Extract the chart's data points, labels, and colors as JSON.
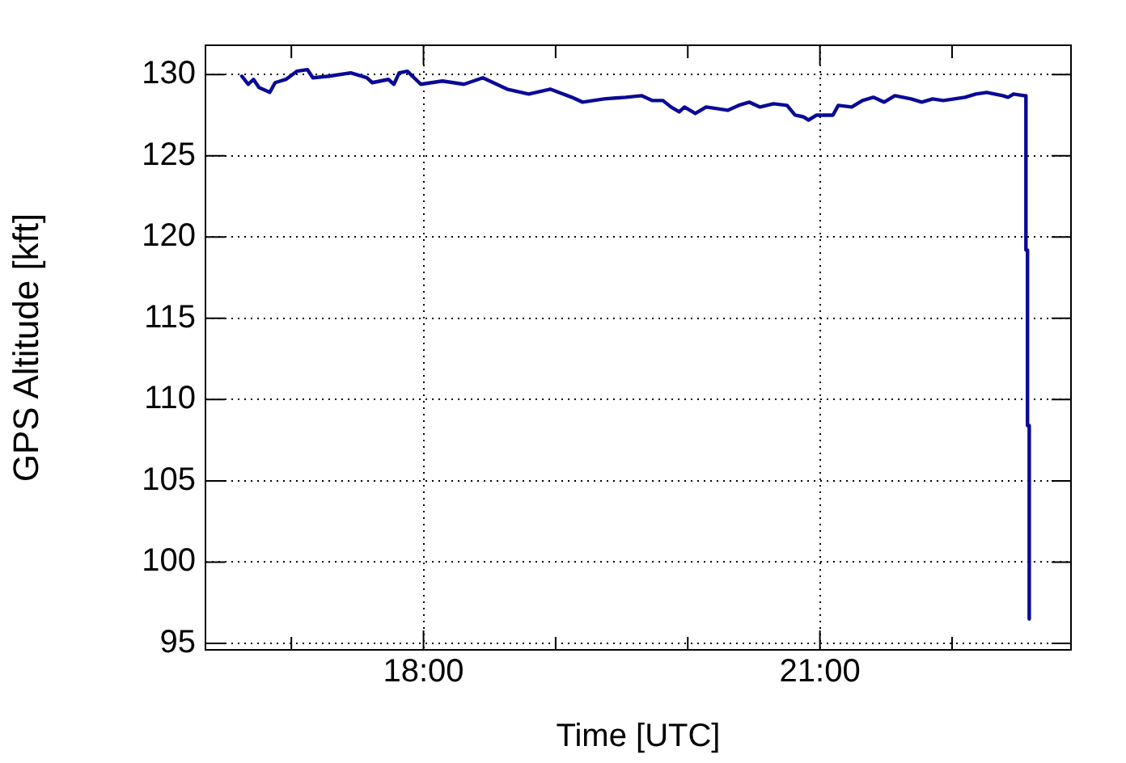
{
  "chart_data": {
    "type": "line",
    "xlabel": "Time [UTC]",
    "ylabel": "GPS Altitude [kft]",
    "xlim": [
      16.35,
      22.9
    ],
    "ylim": [
      94.6,
      131.8
    ],
    "xticks": [
      {
        "value": 17,
        "label": null
      },
      {
        "value": 18,
        "label": "18:00"
      },
      {
        "value": 19,
        "label": null
      },
      {
        "value": 20,
        "label": null
      },
      {
        "value": 21,
        "label": "21:00"
      },
      {
        "value": 22,
        "label": null
      }
    ],
    "yticks": [
      95,
      100,
      105,
      110,
      115,
      120,
      125,
      130
    ],
    "grid": true,
    "legend": false,
    "marker": "none",
    "line_style": "solid",
    "series": [
      {
        "color": "#0a0a96",
        "x": [
          16.625,
          16.674,
          16.714,
          16.755,
          16.837,
          16.877,
          16.959,
          17.041,
          17.122,
          17.163,
          17.286,
          17.449,
          17.571,
          17.612,
          17.734,
          17.776,
          17.816,
          17.878,
          17.98,
          18.143,
          18.306,
          18.449,
          18.633,
          18.796,
          18.959,
          19.122,
          19.204,
          19.367,
          19.531,
          19.649,
          19.73,
          19.812,
          19.873,
          19.935,
          19.975,
          20.057,
          20.139,
          20.22,
          20.302,
          20.384,
          20.465,
          20.547,
          20.649,
          20.751,
          20.812,
          20.873,
          20.914,
          20.975,
          21.037,
          21.098,
          21.139,
          21.241,
          21.322,
          21.404,
          21.486,
          21.567,
          21.69,
          21.771,
          21.853,
          21.934,
          22.016,
          22.098,
          22.179,
          22.261,
          22.384,
          22.424,
          22.465,
          22.547,
          22.559,
          22.559,
          22.571,
          22.571,
          22.584,
          22.584
        ],
        "values": [
          129.9,
          129.4,
          129.7,
          129.2,
          128.9,
          129.5,
          129.7,
          130.2,
          130.3,
          129.8,
          129.9,
          130.1,
          129.8,
          129.5,
          129.7,
          129.4,
          130.1,
          130.2,
          129.4,
          129.6,
          129.4,
          129.8,
          129.1,
          128.8,
          129.1,
          128.6,
          128.3,
          128.5,
          128.6,
          128.7,
          128.4,
          128.4,
          128.0,
          127.7,
          128.0,
          127.6,
          128.0,
          127.9,
          127.8,
          128.1,
          128.3,
          128.0,
          128.2,
          128.1,
          127.5,
          127.4,
          127.2,
          127.5,
          127.5,
          127.5,
          128.1,
          128.0,
          128.4,
          128.6,
          128.3,
          128.7,
          128.5,
          128.3,
          128.5,
          128.4,
          128.5,
          128.6,
          128.8,
          128.9,
          128.7,
          128.6,
          128.8,
          128.7,
          128.7,
          119.2,
          119.2,
          108.4,
          108.4,
          96.5
        ]
      }
    ]
  }
}
